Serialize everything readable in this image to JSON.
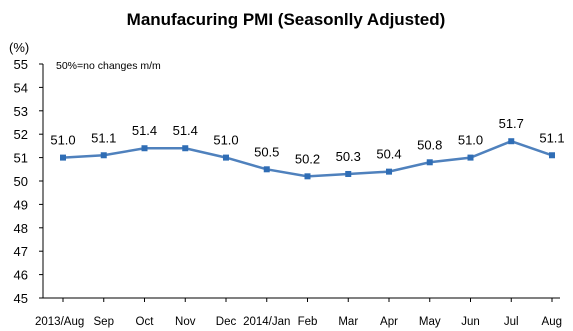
{
  "chart_data": {
    "type": "line",
    "title": "Manufacuring PMI (Seasonlly Adjusted)",
    "ylabel": "(%)",
    "xlabel": "",
    "annotation": "50%=no changes m/m",
    "categories": [
      "2013/Aug",
      "Sep",
      "Oct",
      "Nov",
      "Dec",
      "2014/Jan",
      "Feb",
      "Mar",
      "Apr",
      "May",
      "Jun",
      "Jul",
      "Aug"
    ],
    "series": [
      {
        "values": [
          51.0,
          51.1,
          51.4,
          51.4,
          51.0,
          50.5,
          50.2,
          50.3,
          50.4,
          50.8,
          51.0,
          51.7,
          51.1
        ]
      }
    ],
    "data_labels": [
      "51.0",
      "51.1",
      "51.4",
      "51.4",
      "51.0",
      "50.5",
      "50.2",
      "50.3",
      "50.4",
      "50.8",
      "51.0",
      "51.7",
      "51.1"
    ],
    "ylim": [
      45,
      55
    ],
    "yticks": [
      "55",
      "54",
      "53",
      "52",
      "51",
      "50",
      "49",
      "48",
      "47",
      "46",
      "45"
    ],
    "grid": false,
    "legend": "none",
    "colors": {
      "line": "#4f81bd",
      "marker": "#2f6db5",
      "text": "#000000",
      "axis": "#000000"
    }
  }
}
